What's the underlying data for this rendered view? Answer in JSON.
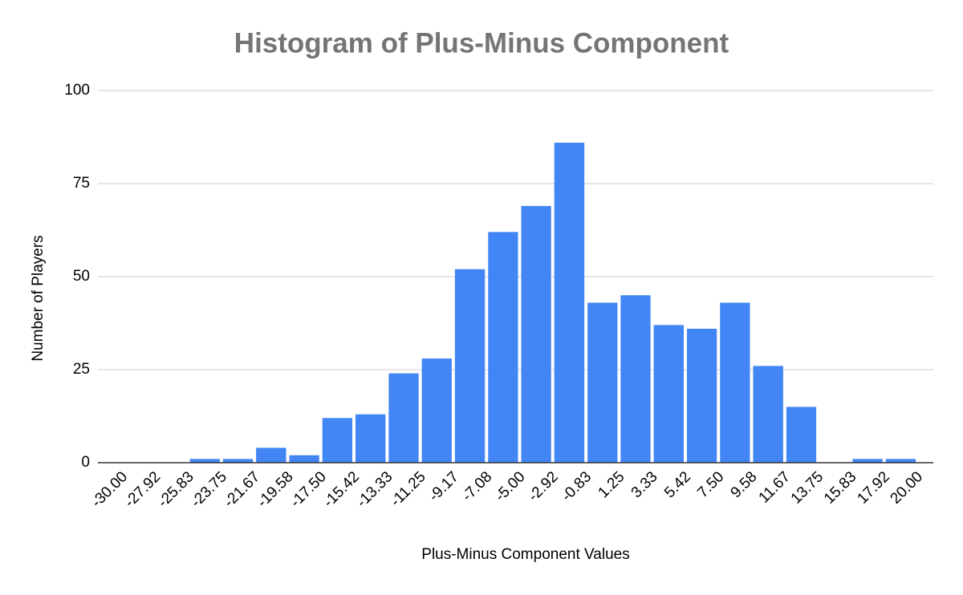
{
  "chart_data": {
    "type": "histogram",
    "title": "Histogram of Plus-Minus Component",
    "x_label": "Plus-Minus Component Values",
    "y_label": "Number of Players",
    "bins": [
      {
        "value": -30,
        "label": "-30.00"
      },
      -27.92,
      -25.83,
      -23.75,
      -21.67,
      -19.58,
      {
        "value": -17.5,
        "label": "-17.50"
      },
      -15.42,
      -13.33,
      -11.25,
      -9.17,
      -7.08,
      {
        "value": -5,
        "label": "-5.00"
      },
      -2.92,
      -0.83,
      1.25,
      3.33,
      5.42,
      {
        "value": 7.5,
        "label": "7.50"
      },
      9.58,
      11.67,
      13.75,
      15.83,
      17.92,
      {
        "value": 20,
        "label": "20.00"
      }
    ],
    "values": [
      0,
      0,
      1,
      1,
      4,
      2,
      12,
      13,
      24,
      28,
      52,
      62,
      69,
      86,
      43,
      45,
      37,
      36,
      43,
      26,
      15,
      0,
      1,
      1
    ],
    "color": "#4285f4",
    "xlim": [
      -30,
      20
    ],
    "ylim": [
      0,
      100
    ],
    "yticks": [
      0,
      25,
      50,
      75,
      100
    ],
    "grid": true
  }
}
